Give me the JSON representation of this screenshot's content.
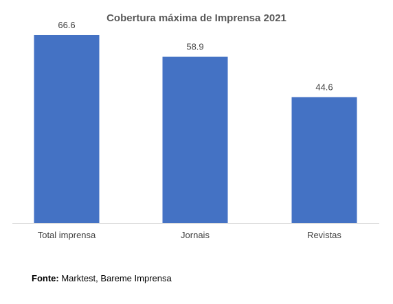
{
  "chart_data": {
    "type": "bar",
    "title": "Cobertura máxima de Imprensa 2021",
    "categories": [
      "Total imprensa",
      "Jornais",
      "Revistas"
    ],
    "values": [
      66.6,
      58.9,
      44.6
    ],
    "data_labels": [
      "66.6",
      "58.9",
      "44.6"
    ],
    "xlabel": "",
    "ylabel": "",
    "ylim": [
      0,
      70
    ],
    "grid": false,
    "legend": "none",
    "bar_color": "#4472C4"
  },
  "source": {
    "label": "Fonte:",
    "text": " Marktest, Bareme Imprensa"
  }
}
